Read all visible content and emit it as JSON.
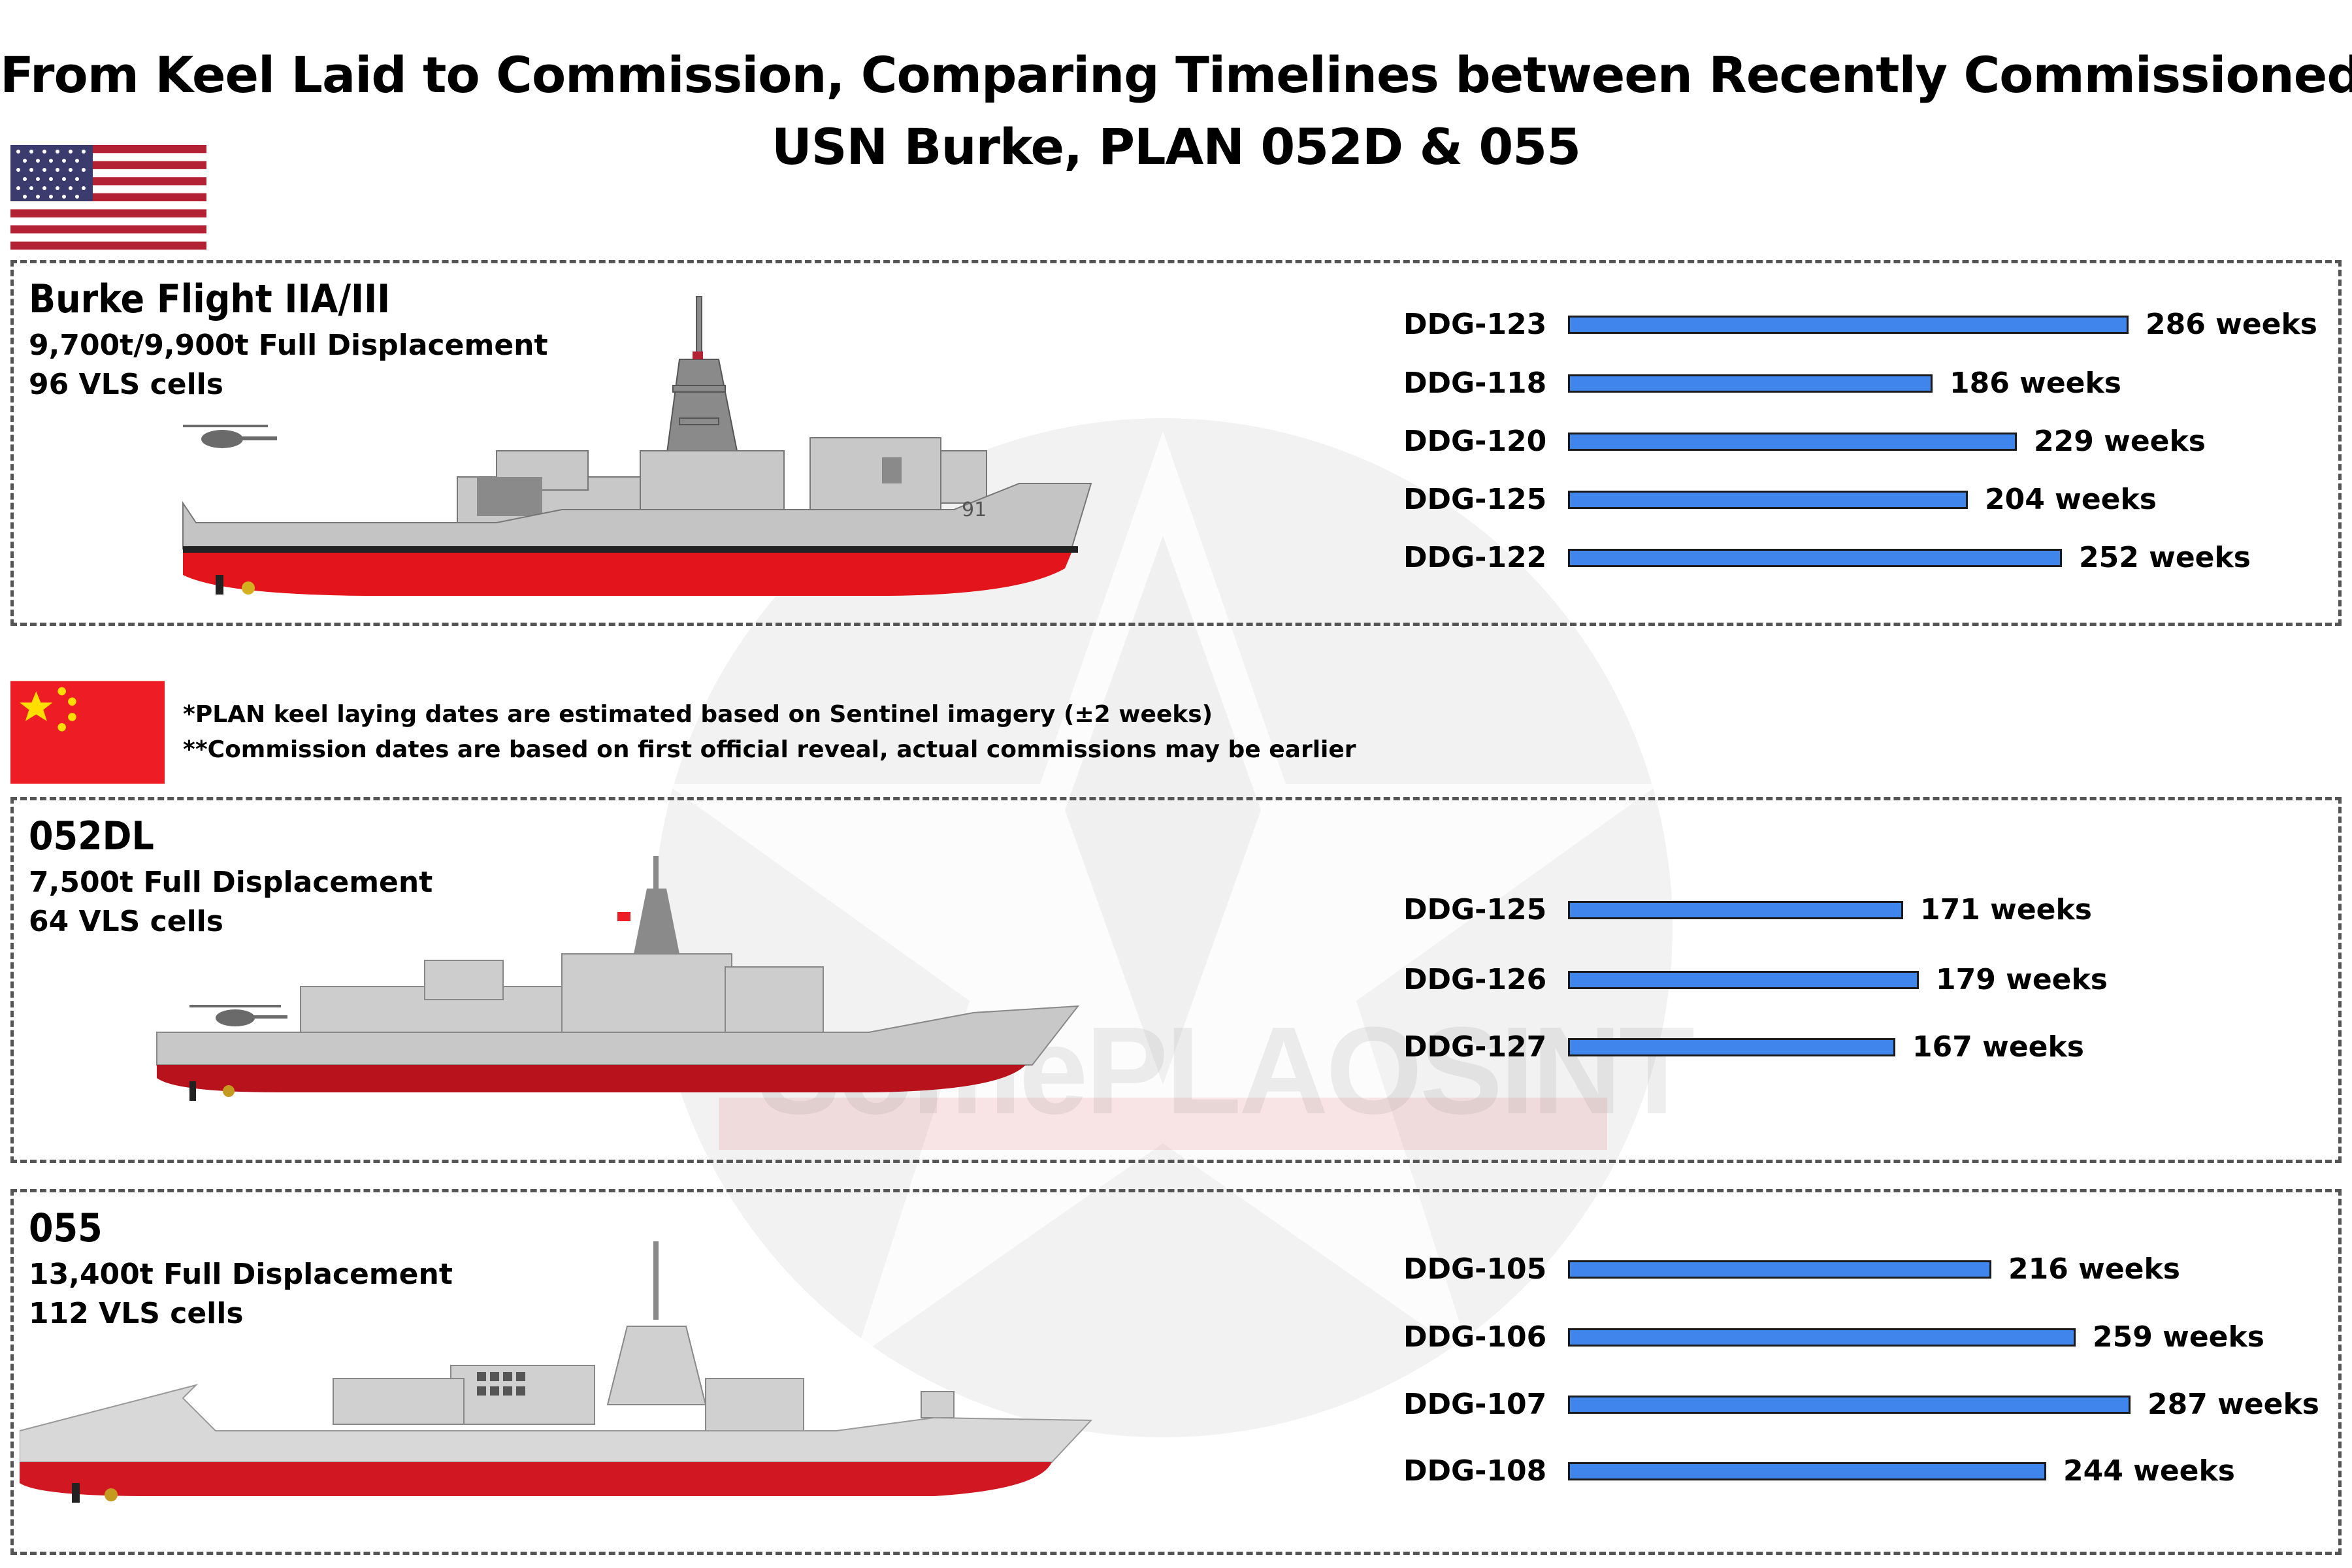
{
  "title": {
    "line1": "From Keel Laid to Commission, Comparing Timelines between Recently Commissioned",
    "line2": "USN Burke, PLAN 052D & 055"
  },
  "watermark": "SomePLAOSINT",
  "colors": {
    "bar": "#3f85ec",
    "hull_red": "#e3141b",
    "us_red": "#b22234",
    "us_blue": "#3c3b6e",
    "cn_red": "#ee1c25",
    "cn_yellow": "#ffde00"
  },
  "icons": [
    "us-flag-icon",
    "china-flag-icon",
    "star-watermark-icon"
  ],
  "notes": {
    "keel": "*PLAN keel laying dates are estimated based on Sentinel imagery (±2 weeks)",
    "commission": "**Commission dates are based on first official reveal, actual commissions may be earlier"
  },
  "classes": [
    {
      "name": "Burke Flight IIA/III",
      "displacement": "9,700t/9,900t Full Displacement",
      "vls": "96 VLS cells",
      "hull_number": "91"
    },
    {
      "name": "052DL",
      "displacement": "7,500t Full Displacement",
      "vls": "64 VLS cells"
    },
    {
      "name": "055",
      "displacement": "13,400t Full Displacement",
      "vls": "112 VLS cells"
    }
  ],
  "chart_data": [
    {
      "type": "bar",
      "orientation": "horizontal",
      "categories": [
        "DDG-123",
        "DDG-118",
        "DDG-120",
        "DDG-125",
        "DDG-122"
      ],
      "values": [
        286,
        186,
        229,
        204,
        252
      ],
      "value_labels": [
        "286 weeks",
        "186 weeks",
        "229 weeks",
        "204 weeks",
        "252 weeks"
      ]
    },
    {
      "type": "bar",
      "orientation": "horizontal",
      "categories": [
        "DDG-125",
        "DDG-126",
        "DDG-127"
      ],
      "values": [
        171,
        179,
        167
      ],
      "value_labels": [
        "171 weeks",
        "179 weeks",
        "167 weeks"
      ]
    },
    {
      "type": "bar",
      "orientation": "horizontal",
      "categories": [
        "DDG-105",
        "DDG-106",
        "DDG-107",
        "DDG-108"
      ],
      "values": [
        216,
        259,
        287,
        244
      ],
      "value_labels": [
        "216 weeks",
        "259 weeks",
        "287 weeks",
        "244 weeks"
      ]
    }
  ]
}
